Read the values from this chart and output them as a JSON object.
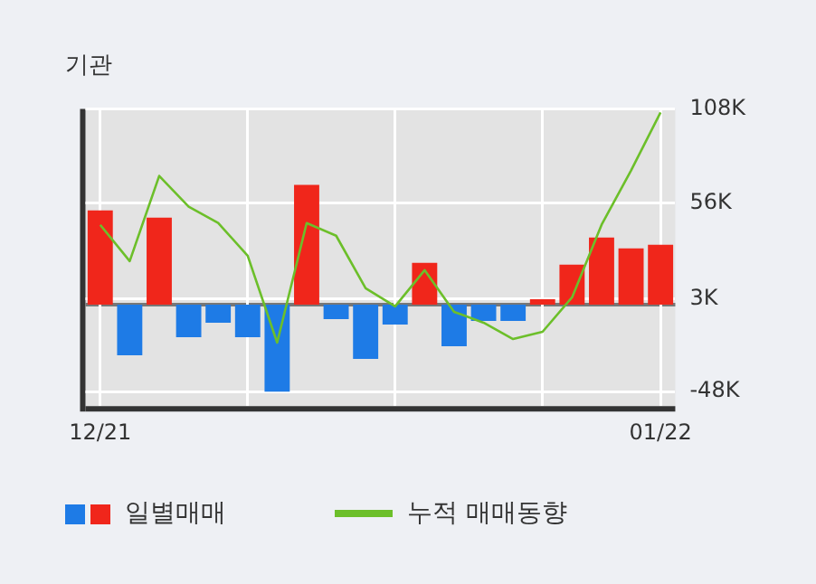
{
  "chart_data": {
    "type": "bar",
    "title": "기관",
    "categories": [
      "12/21",
      null,
      null,
      null,
      null,
      null,
      null,
      null,
      null,
      null,
      null,
      null,
      null,
      null,
      null,
      null,
      null,
      null,
      null,
      "01/22"
    ],
    "series": [
      {
        "name": "일별매매",
        "colors": [
          "#f0261b",
          "#1e7be6",
          "#f0261b",
          "#1e7be6",
          "#1e7be6",
          "#1e7be6",
          "#1e7be6",
          "#f0261b",
          "#1e7be6",
          "#1e7be6",
          "#1e7be6",
          "#f0261b",
          "#1e7be6",
          "#1e7be6",
          "#1e7be6",
          "#f0261b",
          "#f0261b",
          "#f0261b",
          "#f0261b",
          "#f0261b"
        ],
        "values": [
          52,
          -28,
          48,
          -18,
          -10,
          -18,
          -48,
          66,
          -8,
          -30,
          -11,
          23,
          -23,
          -9,
          -9,
          3,
          22,
          37,
          31,
          33
        ]
      },
      {
        "name": "누적 매매동향",
        "type": "line",
        "color": "#6cbf2a",
        "values": [
          44,
          24,
          71,
          54,
          45,
          27,
          -21,
          45,
          38,
          9,
          -1,
          19,
          -4,
          -10,
          -19,
          -15,
          4,
          44,
          74,
          106
        ]
      }
    ],
    "ylim": [
      -56,
      108
    ],
    "yticks": [
      {
        "value": 108,
        "label": "108K"
      },
      {
        "value": 56,
        "label": "56K"
      },
      {
        "value": 3,
        "label": "3K"
      },
      {
        "value": -48,
        "label": "-48K"
      }
    ],
    "grid": true,
    "legend": "bottom",
    "marker": "none"
  }
}
